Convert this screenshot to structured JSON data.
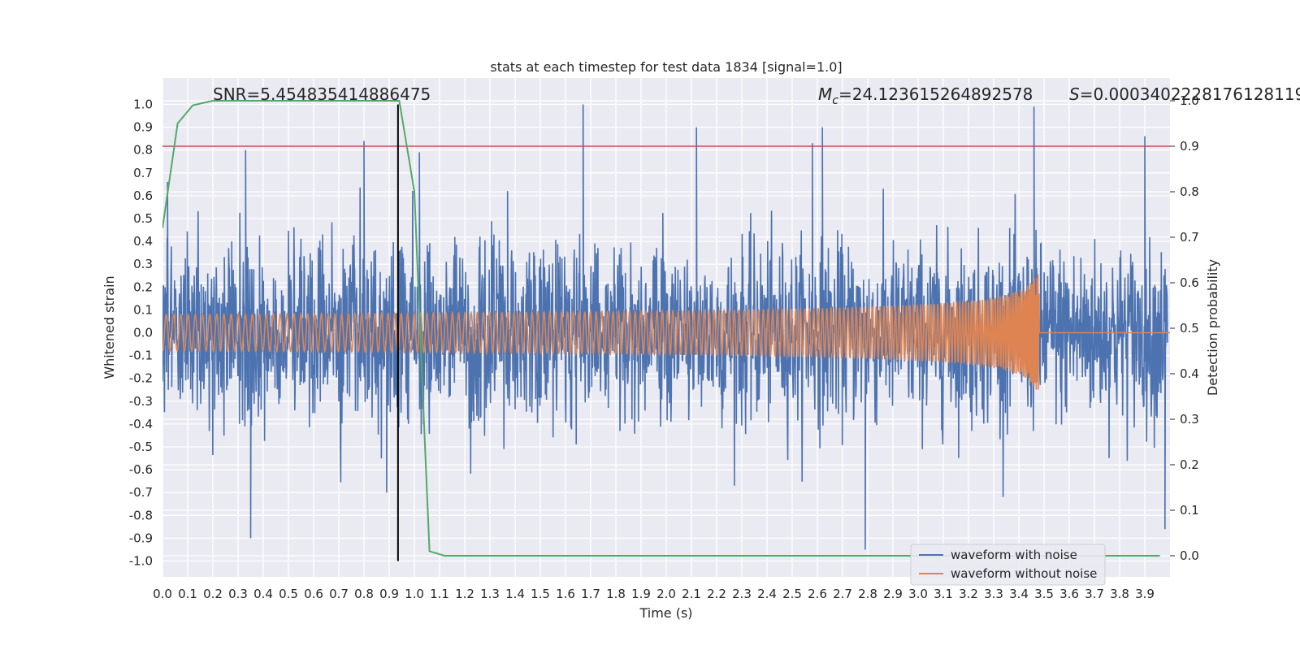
{
  "chart_data": {
    "type": "line",
    "title": "stats at each timestep for test data 1834 [signal=1.0]",
    "xlabel": "Time (s)",
    "ylabel": "Whitened strain",
    "y2label": "Detection probability",
    "xlim": [
      0.0,
      4.0
    ],
    "ylim": [
      -1.1,
      1.1
    ],
    "y2lim": [
      -0.05,
      1.05
    ],
    "xticks": [
      "0.0",
      "0.1",
      "0.2",
      "0.3",
      "0.4",
      "0.5",
      "0.6",
      "0.7",
      "0.8",
      "0.9",
      "1.0",
      "1.1",
      "1.2",
      "1.3",
      "1.4",
      "1.5",
      "1.6",
      "1.7",
      "1.8",
      "1.9",
      "2.0",
      "2.1",
      "2.2",
      "2.3",
      "2.4",
      "2.5",
      "2.6",
      "2.7",
      "2.8",
      "2.9",
      "3.0",
      "3.1",
      "3.2",
      "3.3",
      "3.4",
      "3.5",
      "3.6",
      "3.7",
      "3.8",
      "3.9"
    ],
    "yticks": [
      "1.0",
      "0.9",
      "0.8",
      "0.7",
      "0.6",
      "0.5",
      "0.4",
      "0.3",
      "0.2",
      "0.1",
      "0.0",
      "-0.1",
      "-0.2",
      "-0.3",
      "-0.4",
      "-0.5",
      "-0.6",
      "-0.7",
      "-0.8",
      "-0.9",
      "-1.0"
    ],
    "y2ticks": [
      "1.0",
      "0.9",
      "0.8",
      "0.7",
      "0.6",
      "0.5",
      "0.4",
      "0.3",
      "0.2",
      "0.1",
      "0.0"
    ],
    "grid": true,
    "legend_position": "lower-right",
    "annotations": {
      "snr": "SNR=5.454835414886475",
      "mc_symbol": "M",
      "mc_sub": "c",
      "mc_value": "=24.123615264892578",
      "s_symbol": "S",
      "s_value": "=0.0003402228176128119"
    },
    "series": [
      {
        "name": "waveform with noise",
        "color": "#4c72b0",
        "axis": "left",
        "x_range": [
          0.0,
          3.99
        ],
        "typical_amplitude": 0.35,
        "peaks": [
          [
            0.02,
            0.66
          ],
          [
            0.33,
            0.8
          ],
          [
            0.35,
            -0.9
          ],
          [
            0.8,
            0.84
          ],
          [
            0.89,
            -0.7
          ],
          [
            1.02,
            0.79
          ],
          [
            1.37,
            0.62
          ],
          [
            1.67,
            1.0
          ],
          [
            2.12,
            0.9
          ],
          [
            2.58,
            0.83
          ],
          [
            2.62,
            0.9
          ],
          [
            2.79,
            -0.95
          ],
          [
            3.46,
            0.99
          ],
          [
            3.9,
            0.86
          ],
          [
            3.98,
            -0.86
          ]
        ]
      },
      {
        "name": "waveform without noise",
        "color": "#dd8452",
        "axis": "left",
        "merger_time": 3.48,
        "peak_amplitude": 0.31
      },
      {
        "color": "#55a868",
        "axis": "right",
        "x": [
          0.0,
          0.06,
          0.12,
          0.2,
          0.4,
          0.6,
          0.8,
          0.94,
          0.97,
          1.0,
          1.03,
          1.06,
          1.12,
          1.2,
          1.5,
          2.0,
          2.5,
          3.0,
          3.5,
          3.96
        ],
        "y": [
          0.72,
          0.95,
          0.99,
          1.0,
          1.0,
          1.0,
          1.0,
          1.0,
          0.9,
          0.8,
          0.4,
          0.01,
          0.0,
          0.0,
          0.0,
          0.0,
          0.0,
          0.0,
          0.0,
          0.0
        ]
      }
    ],
    "hlines": [
      {
        "axis": "right",
        "y": 0.9,
        "color": "#c44e52"
      }
    ],
    "vlines": [
      {
        "x": 0.935,
        "color": "#000000",
        "ymin": -1.0,
        "ymax": 1.0
      }
    ]
  }
}
